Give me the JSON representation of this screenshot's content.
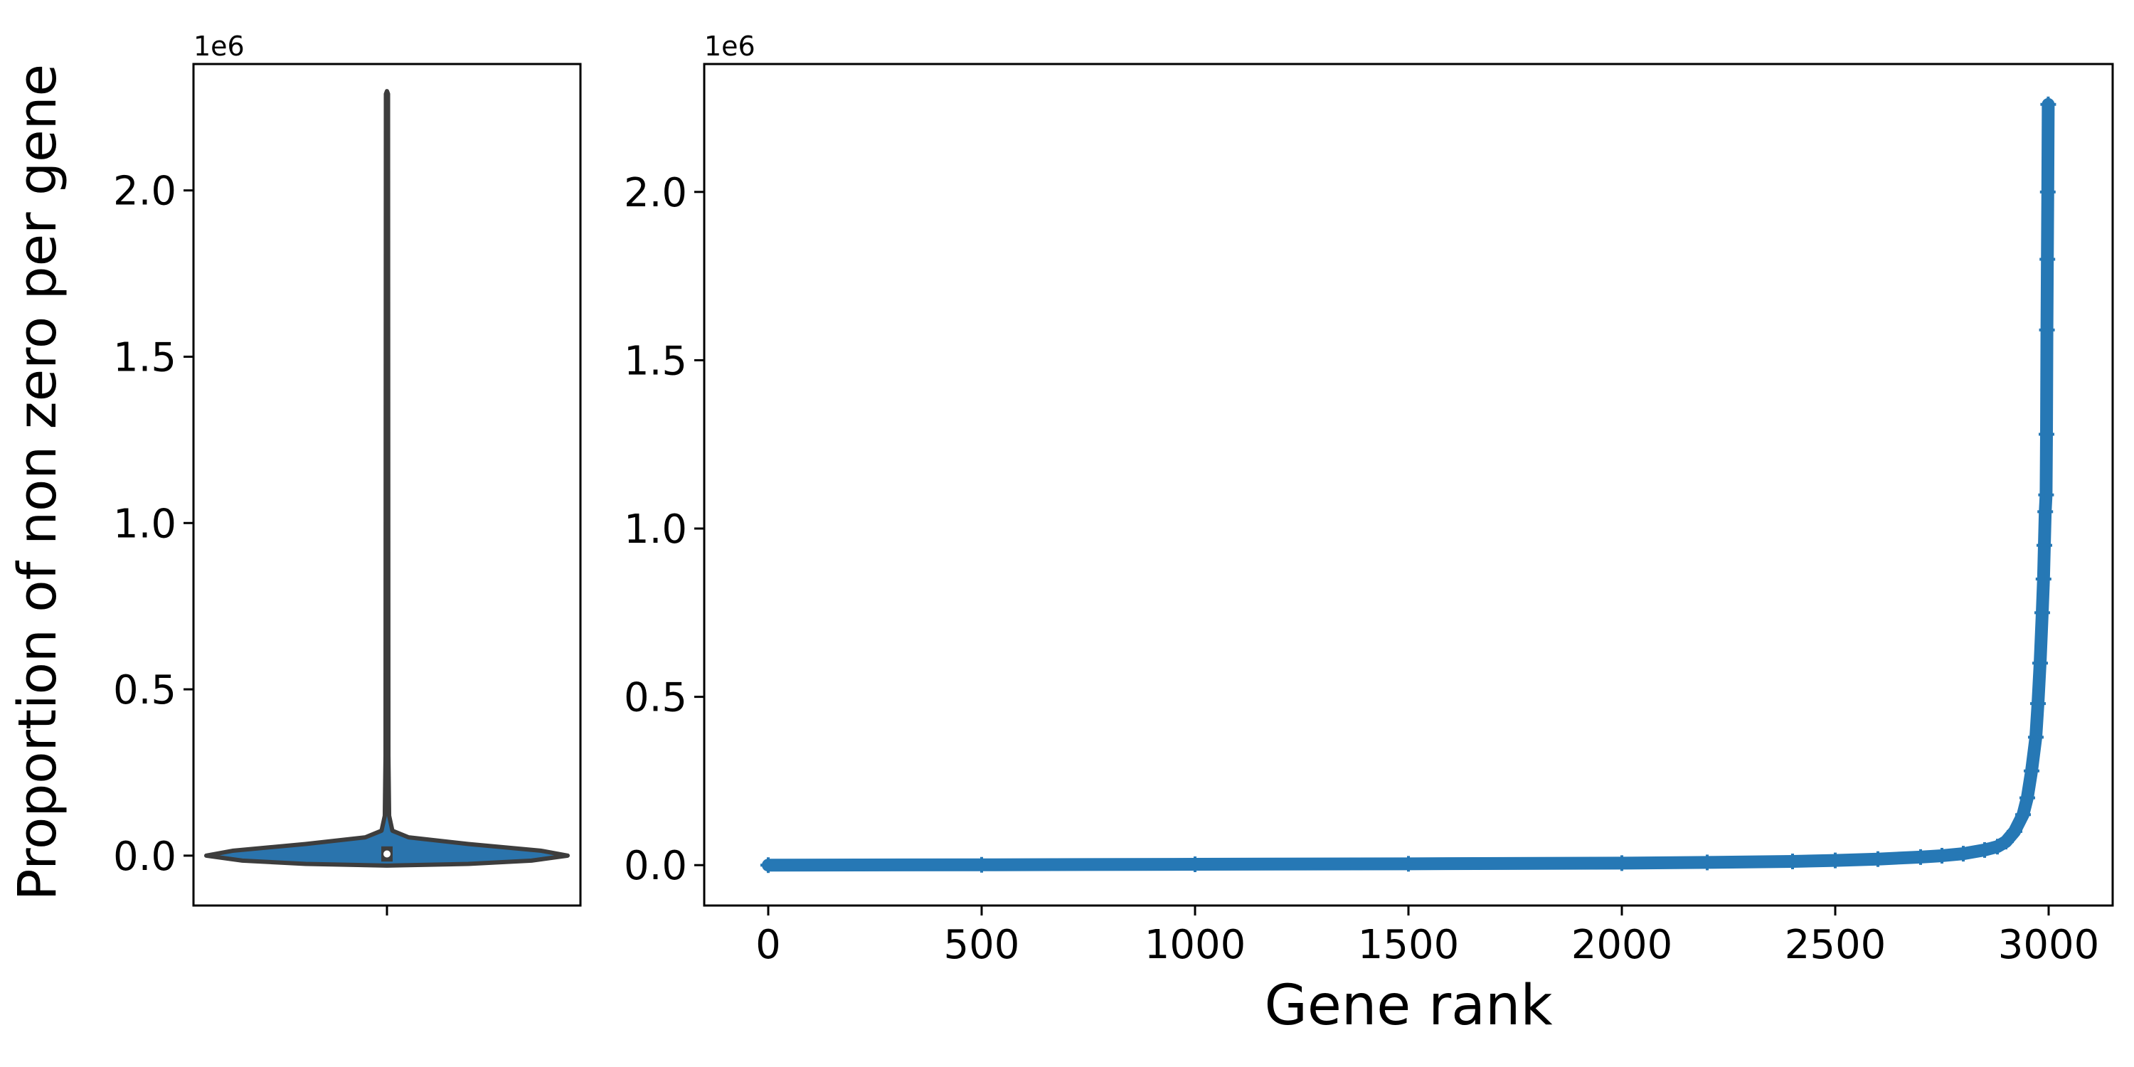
{
  "colors": {
    "series": "#2678b5",
    "violin_fill": "#2a74ad",
    "violin_edge": "#3d3d3d",
    "axes": "#000000"
  },
  "chart_data": [
    {
      "type": "violin",
      "title": "",
      "xlabel": "",
      "ylabel": "Proportion of non zero per gene",
      "y_offset_label": "1e6",
      "ylim": [
        -150000,
        2380000
      ],
      "yticks": [
        0,
        500000,
        1000000,
        1500000,
        2000000
      ],
      "ytick_labels": [
        "0.0",
        "0.5",
        "1.0",
        "1.5",
        "2.0"
      ],
      "min": -30000,
      "max": 2290000,
      "median": 5000,
      "q1": -5000,
      "q3": 15000,
      "grid": false,
      "legend": "none"
    },
    {
      "type": "scatter",
      "marker": "+",
      "title": "",
      "xlabel": "Gene rank",
      "ylabel": "",
      "y_offset_label": "1e6",
      "xlim": [
        -150,
        3150
      ],
      "ylim": [
        -120000,
        2380000
      ],
      "xticks": [
        0,
        500,
        1000,
        1500,
        2000,
        2500,
        3000
      ],
      "xtick_labels": [
        "0",
        "500",
        "1000",
        "1500",
        "2000",
        "2500",
        "3000"
      ],
      "yticks": [
        0,
        500000,
        1000000,
        1500000,
        2000000
      ],
      "ytick_labels": [
        "0.0",
        "0.5",
        "1.0",
        "1.5",
        "2.0"
      ],
      "grid": false,
      "legend": "none",
      "x": [
        0,
        500,
        1000,
        1500,
        2000,
        2200,
        2400,
        2500,
        2600,
        2700,
        2750,
        2800,
        2850,
        2880,
        2900,
        2920,
        2940,
        2950,
        2960,
        2970,
        2975,
        2980,
        2985,
        2988,
        2990,
        2992,
        2994,
        2995,
        2996,
        2997,
        2998,
        2999
      ],
      "y": [
        0,
        1000,
        2500,
        4000,
        6000,
        8000,
        11000,
        14000,
        18000,
        24000,
        28000,
        34000,
        45000,
        55000,
        70000,
        100000,
        150000,
        200000,
        280000,
        380000,
        480000,
        600000,
        750000,
        850000,
        950000,
        1050000,
        1100000,
        1280000,
        1590000,
        1800000,
        2000000,
        2260000
      ]
    }
  ]
}
